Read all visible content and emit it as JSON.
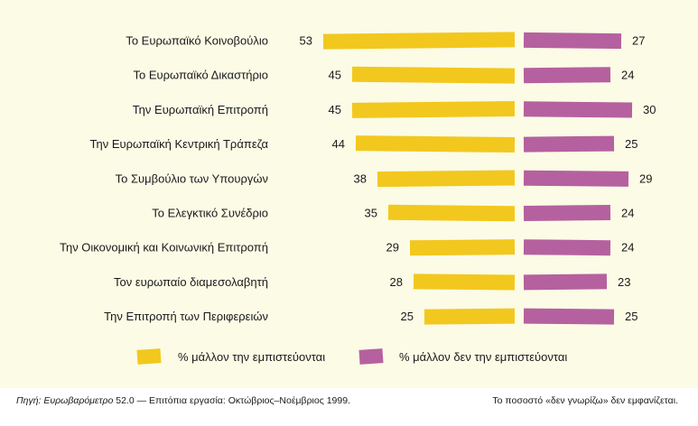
{
  "chart_data": {
    "type": "bar",
    "orientation": "horizontal-diverging",
    "categories": [
      "Το Ευρωπαϊκό Κοινοβούλιο",
      "Το Ευρωπαϊκό Δικαστήριο",
      "Την Ευρωπαϊκή Επιτροπή",
      "Την Ευρωπαϊκή Κεντρική Τράπεζα",
      "Το Συμβούλιο των Υπουργών",
      "Το Ελεγκτικό Συνέδριο",
      "Την Οικονομική και Κοινωνική Επιτροπή",
      "Τον ευρωπαίο διαμεσολαβητή",
      "Την Επιτροπή των Περιφερειών"
    ],
    "series": [
      {
        "name": "% μάλλον την εμπιστεύονται",
        "color": "#f2c81e",
        "values": [
          53,
          45,
          45,
          44,
          38,
          35,
          29,
          28,
          25
        ]
      },
      {
        "name": "% μάλλον δεν την εμπιστεύονται",
        "color": "#b5619f",
        "values": [
          27,
          24,
          30,
          25,
          29,
          24,
          24,
          23,
          25
        ]
      }
    ],
    "legend_position": "bottom",
    "grid": false
  },
  "footer": {
    "source_label": "Πηγή:",
    "source_name": "Ευρωβαρόμετρο",
    "source_detail": " 52.0 — Επιτόπια εργασία: Οκτώβριος–Νοέμβριος 1999.",
    "note": "Το ποσοστό «δεν γνωρίζω» δεν εμφανίζεται."
  }
}
